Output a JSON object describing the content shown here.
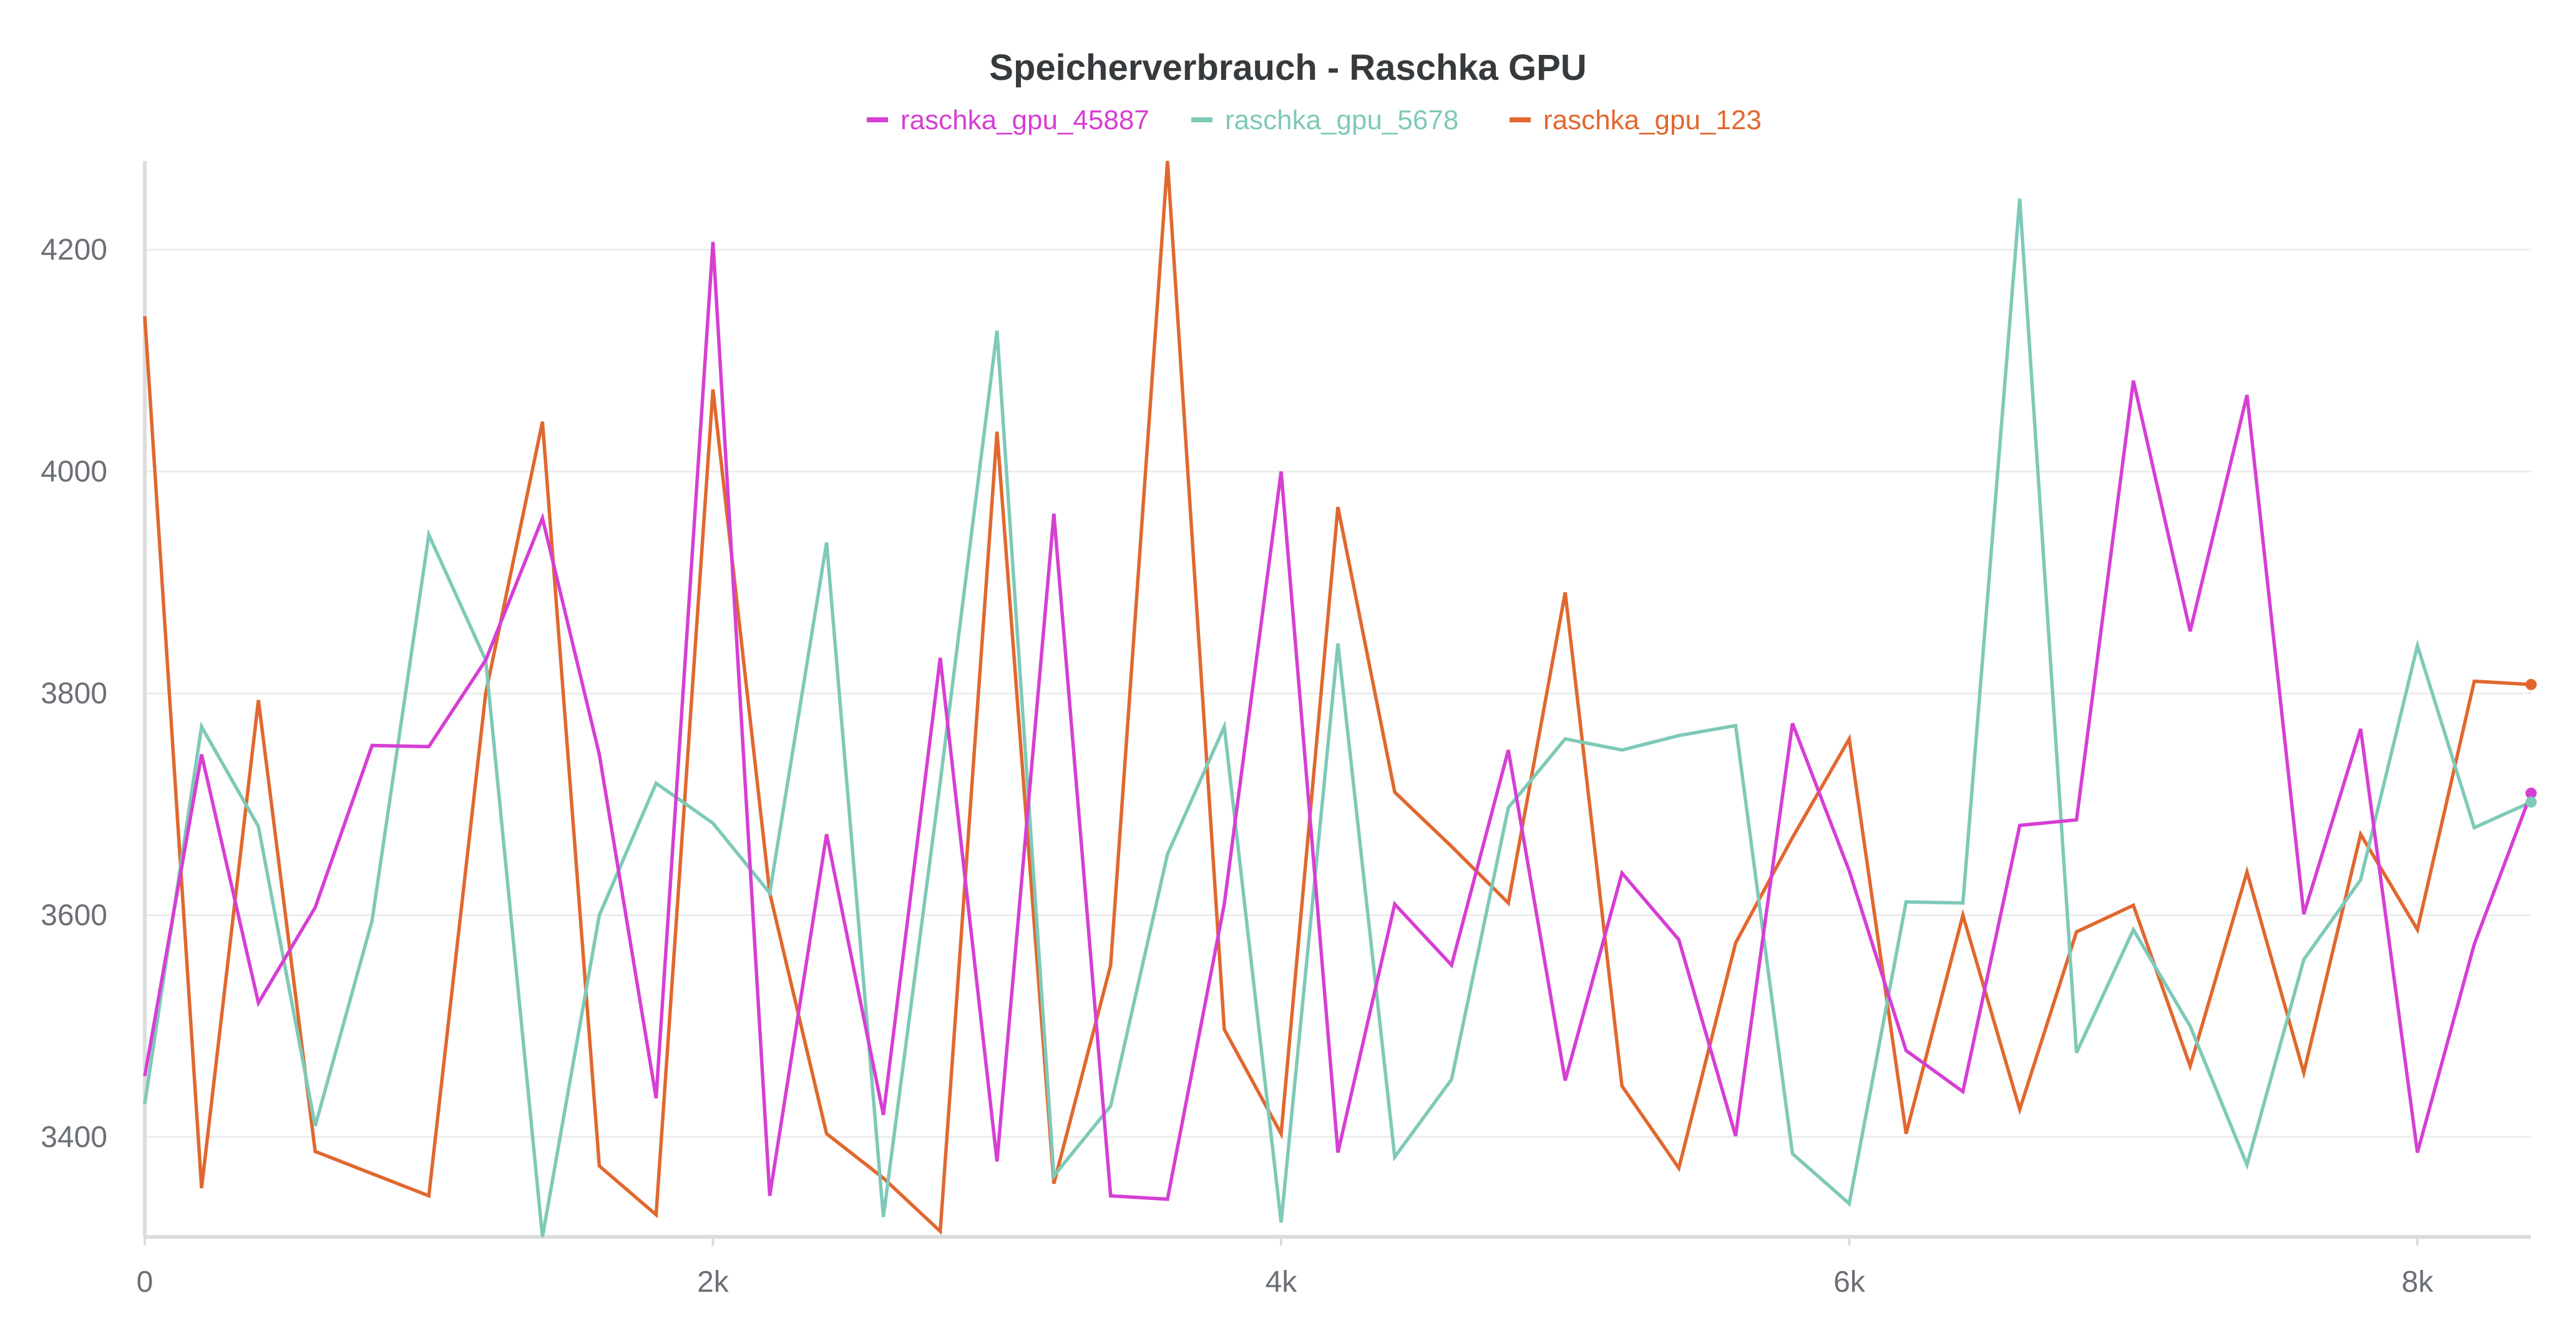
{
  "chart_data": {
    "type": "line",
    "title": "Speicherverbrauch - Raschka GPU",
    "xlabel": "",
    "ylabel": "",
    "xlim": [
      0,
      8400
    ],
    "ylim": [
      3310,
      4280
    ],
    "x_ticks": [
      0,
      2000,
      4000,
      6000,
      8000
    ],
    "x_tick_labels": [
      "0",
      "2k",
      "4k",
      "6k",
      "8k"
    ],
    "y_ticks": [
      3400,
      3600,
      3800,
      4000,
      4200
    ],
    "y_tick_labels": [
      "3400",
      "3600",
      "3800",
      "4000",
      "4200"
    ],
    "grid": true,
    "legend_position": "top-center",
    "x": [
      0,
      200,
      400,
      600,
      800,
      1000,
      1200,
      1400,
      1600,
      1800,
      2000,
      2200,
      2400,
      2600,
      2800,
      3000,
      3200,
      3400,
      3600,
      3800,
      4000,
      4200,
      4400,
      4600,
      4800,
      5000,
      5200,
      5400,
      5600,
      5800,
      6000,
      6200,
      6400,
      6600,
      6800,
      7000,
      7200,
      7400,
      7600,
      7800,
      8000,
      8200,
      8400
    ],
    "series": [
      {
        "name": "raschka_gpu_45887",
        "color": "#d63fd3",
        "values": [
          3455,
          3745,
          3521,
          3607,
          3753,
          3752,
          3830,
          3958,
          3745,
          3435,
          4207,
          3347,
          3673,
          3420,
          3832,
          3378,
          3962,
          3347,
          3344,
          3610,
          4000,
          3386,
          3610,
          3555,
          3749,
          3451,
          3638,
          3578,
          3401,
          3773,
          3640,
          3478,
          3441,
          3681,
          3686,
          4082,
          3856,
          4069,
          3601,
          3768,
          3386,
          3574,
          3710
        ]
      },
      {
        "name": "raschka_gpu_5678",
        "color": "#7fc9b8",
        "values": [
          3430,
          3770,
          3680,
          3410,
          3595,
          3943,
          3830,
          3310,
          3600,
          3719,
          3683,
          3620,
          3936,
          3328,
          3720,
          4127,
          3365,
          3428,
          3655,
          3770,
          3323,
          3845,
          3382,
          3452,
          3697,
          3759,
          3749,
          3762,
          3771,
          3385,
          3340,
          3612,
          3611,
          4246,
          3476,
          3587,
          3500,
          3375,
          3560,
          3632,
          3843,
          3679,
          3702
        ]
      },
      {
        "name": "raschka_gpu_123",
        "color": "#e0682f",
        "values": [
          4140,
          3354,
          3794,
          3387,
          3367,
          3347,
          3800,
          4045,
          3374,
          3330,
          4074,
          3620,
          3403,
          3363,
          3315,
          4036,
          3358,
          3555,
          4280,
          3497,
          3403,
          3968,
          3711,
          3662,
          3611,
          3891,
          3446,
          3372,
          3575,
          3670,
          3759,
          3403,
          3600,
          3425,
          3585,
          3609,
          3464,
          3639,
          3458,
          3673,
          3587,
          3811,
          3808
        ]
      }
    ]
  }
}
